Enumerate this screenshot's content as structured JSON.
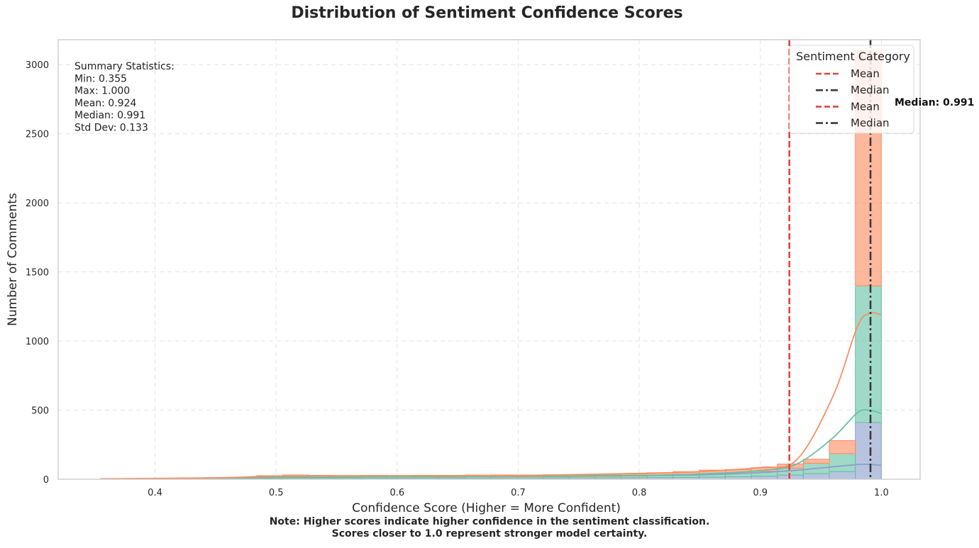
{
  "chart_data": {
    "type": "histogram",
    "title": "Distribution of Sentiment Confidence Scores",
    "xlabel": "Confidence Score (Higher = More Confident)",
    "ylabel": "Number of Comments",
    "xlim": [
      0.32,
      1.032
    ],
    "ylim": [
      0,
      3180
    ],
    "x_ticks": [
      0.4,
      0.5,
      0.6,
      0.7,
      0.8,
      0.9,
      1.0
    ],
    "x_tick_labels": [
      "0.4",
      "0.5",
      "0.6",
      "0.7",
      "0.8",
      "0.9",
      "1.0"
    ],
    "y_ticks": [
      0,
      500,
      1000,
      1500,
      2000,
      2500,
      3000
    ],
    "y_tick_labels": [
      "0",
      "500",
      "1000",
      "1500",
      "2000",
      "2500",
      "3000"
    ],
    "grid": true,
    "stacked": true,
    "bin_edges": [
      0.355,
      0.3765,
      0.398,
      0.4195,
      0.441,
      0.4625,
      0.484,
      0.5055,
      0.527,
      0.5485,
      0.57,
      0.5915,
      0.613,
      0.6345,
      0.656,
      0.6775,
      0.699,
      0.7205,
      0.742,
      0.7635,
      0.785,
      0.8065,
      0.828,
      0.8495,
      0.871,
      0.8925,
      0.914,
      0.9355,
      0.957,
      0.9785,
      1.0
    ],
    "series": [
      {
        "color": "#8da0cb",
        "values": [
          1,
          2,
          2,
          3,
          3,
          4,
          6,
          7,
          7,
          7,
          8,
          8,
          8,
          8,
          9,
          9,
          9,
          9,
          10,
          10,
          11,
          12,
          13,
          15,
          18,
          22,
          30,
          40,
          55,
          410
        ]
      },
      {
        "color": "#66c2a5",
        "values": [
          1,
          2,
          3,
          3,
          4,
          4,
          6,
          7,
          7,
          7,
          8,
          8,
          8,
          8,
          9,
          9,
          9,
          10,
          10,
          11,
          12,
          14,
          17,
          21,
          27,
          35,
          50,
          75,
          130,
          990
        ]
      },
      {
        "color": "#fc8d62",
        "values": [
          2,
          2,
          3,
          4,
          5,
          6,
          14,
          17,
          14,
          13,
          12,
          11,
          12,
          12,
          12,
          13,
          13,
          13,
          13,
          14,
          16,
          21,
          25,
          30,
          25,
          26,
          30,
          30,
          95,
          1700
        ]
      }
    ],
    "kde": [
      {
        "color": "#8da0cb",
        "points": [
          [
            0.355,
            2
          ],
          [
            0.45,
            7
          ],
          [
            0.5,
            14
          ],
          [
            0.6,
            21
          ],
          [
            0.7,
            23
          ],
          [
            0.8,
            28
          ],
          [
            0.85,
            32
          ],
          [
            0.9,
            48
          ],
          [
            0.93,
            65
          ],
          [
            0.96,
            90
          ],
          [
            0.98,
            106
          ],
          [
            0.99,
            108
          ],
          [
            1.0,
            100
          ]
        ]
      },
      {
        "color": "#66c2a5",
        "points": [
          [
            0.355,
            2
          ],
          [
            0.45,
            7
          ],
          [
            0.5,
            14
          ],
          [
            0.6,
            18
          ],
          [
            0.7,
            22
          ],
          [
            0.8,
            28
          ],
          [
            0.85,
            38
          ],
          [
            0.9,
            62
          ],
          [
            0.93,
            110
          ],
          [
            0.96,
            300
          ],
          [
            0.98,
            480
          ],
          [
            0.99,
            500
          ],
          [
            1.0,
            475
          ]
        ]
      },
      {
        "color": "#fc8d62",
        "points": [
          [
            0.355,
            3
          ],
          [
            0.45,
            10
          ],
          [
            0.5,
            22
          ],
          [
            0.6,
            25
          ],
          [
            0.7,
            27
          ],
          [
            0.8,
            42
          ],
          [
            0.85,
            55
          ],
          [
            0.9,
            85
          ],
          [
            0.93,
            140
          ],
          [
            0.96,
            600
          ],
          [
            0.98,
            1100
          ],
          [
            0.99,
            1200
          ],
          [
            1.0,
            1190
          ]
        ]
      }
    ],
    "mean_line": {
      "x": 0.924,
      "color": "#e8413d",
      "style": "dashed"
    },
    "median_line": {
      "x": 0.991,
      "color": "#3a3a3a",
      "style": "dashdot"
    },
    "median_annotation": "Median: 0.991",
    "legend": {
      "title": "Sentiment Category",
      "placement": "top-right",
      "entries": [
        {
          "label": "Mean",
          "color": "#e8413d",
          "style": "dashed"
        },
        {
          "label": "Median",
          "color": "#3a3a3a",
          "style": "dashdot"
        },
        {
          "label": "Mean",
          "color": "#e8413d",
          "style": "dashed"
        },
        {
          "label": "Median",
          "color": "#3a3a3a",
          "style": "dashdot"
        }
      ]
    },
    "summary": {
      "header": "Summary Statistics:",
      "lines": [
        "Min: 0.355",
        "Max: 1.000",
        "Mean: 0.924",
        "Median: 0.991",
        "Std Dev: 0.133"
      ]
    }
  },
  "footnote": {
    "line1": "Note: Higher scores indicate higher confidence in the sentiment classification.",
    "line2": "Scores closer to 1.0 represent stronger model certainty."
  }
}
